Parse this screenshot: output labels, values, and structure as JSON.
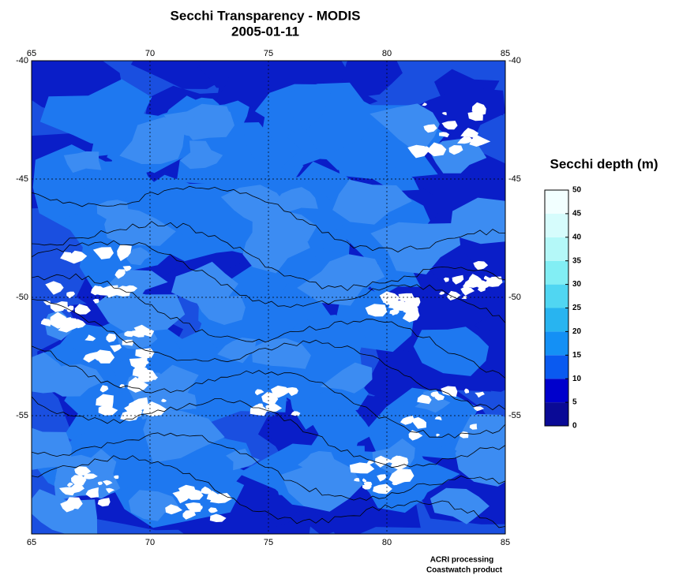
{
  "title": "Secchi Transparency - MODIS",
  "date": "2005-01-11",
  "map": {
    "xlim": [
      65,
      85
    ],
    "xticks": [
      65,
      70,
      75,
      80,
      85
    ],
    "ylim": [
      -40,
      -60
    ],
    "yticks": [
      -40,
      -45,
      -50,
      -55
    ]
  },
  "colorbar": {
    "label": "Secchi depth (m)",
    "lim": [
      0,
      50
    ],
    "ticks": [
      0,
      5,
      10,
      15,
      20,
      25,
      30,
      35,
      40,
      45,
      50
    ],
    "colors": [
      "#0a0a96",
      "#0000cc",
      "#0a5af0",
      "#1490f5",
      "#28b4f0",
      "#50d6f2",
      "#82eef4",
      "#b4f8f8",
      "#d6fcfc",
      "#f2ffff"
    ]
  },
  "credits": [
    "ACRI processing",
    "Coastwatch product"
  ]
}
